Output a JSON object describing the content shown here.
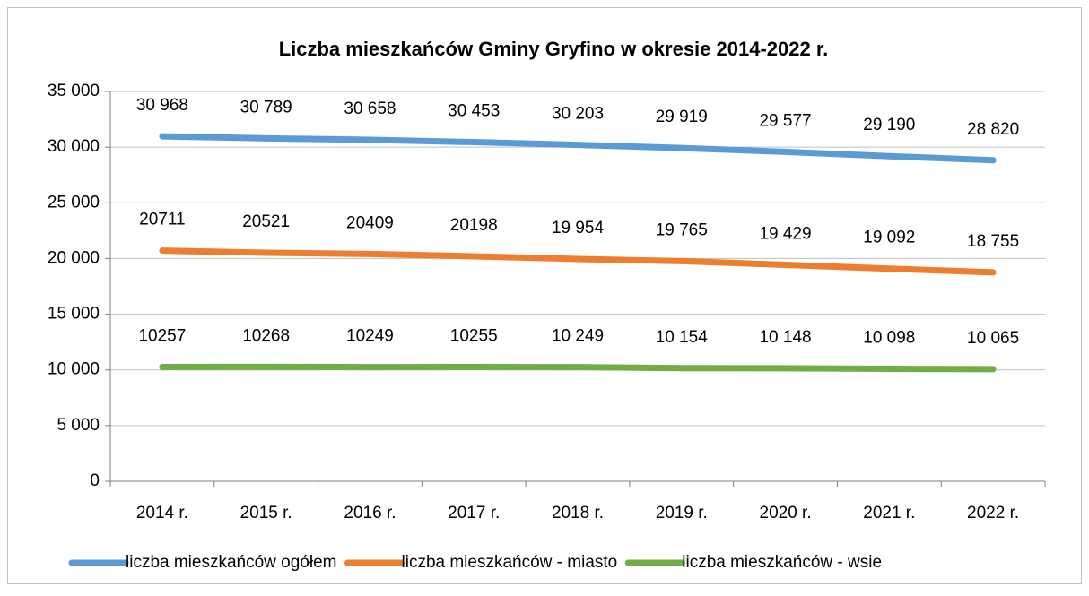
{
  "chart_data": {
    "type": "line",
    "title": "Liczba mieszkańców Gminy Gryfino w okresie 2014-2022 r.",
    "categories": [
      "2014 r.",
      "2015 r.",
      "2016 r.",
      "2017 r.",
      "2018 r.",
      "2019 r.",
      "2020 r.",
      "2021 r.",
      "2022 r."
    ],
    "series": [
      {
        "name": "liczba mieszkańców ogółem",
        "color": "#5b9bd5",
        "values": [
          30968,
          30789,
          30658,
          30453,
          30203,
          29919,
          29577,
          29190,
          28820
        ],
        "value_labels": [
          "30 968",
          "30 789",
          "30 658",
          "30 453",
          "30 203",
          "29 919",
          "29 577",
          "29 190",
          "28 820"
        ]
      },
      {
        "name": "liczba mieszkańców - miasto",
        "color": "#ed7d31",
        "values": [
          20711,
          20521,
          20409,
          20198,
          19954,
          19765,
          19429,
          19092,
          18755
        ],
        "value_labels": [
          "20711",
          "20521",
          "20409",
          "20198",
          "19 954",
          "19 765",
          "19 429",
          "19 092",
          "18 755"
        ]
      },
      {
        "name": "liczba mieszkańców - wsie",
        "color": "#70ad47",
        "values": [
          10257,
          10268,
          10249,
          10255,
          10249,
          10154,
          10148,
          10098,
          10065
        ],
        "value_labels": [
          "10257",
          "10268",
          "10249",
          "10255",
          "10 249",
          "10 154",
          "10 148",
          "10 098",
          "10 065"
        ]
      }
    ],
    "ylim": [
      0,
      35000
    ],
    "yticks": [
      0,
      {
        "value": 5000,
        "label": "5 000"
      },
      {
        "value": 10000,
        "label": "10 000"
      },
      {
        "value": 15000,
        "label": "15 000"
      },
      {
        "value": 20000,
        "label": "20 000"
      },
      {
        "value": 25000,
        "label": "25 000"
      },
      {
        "value": 30000,
        "label": "30 000"
      },
      {
        "value": 35000,
        "label": "35 000"
      }
    ],
    "grid": true,
    "legend": "bottom"
  }
}
